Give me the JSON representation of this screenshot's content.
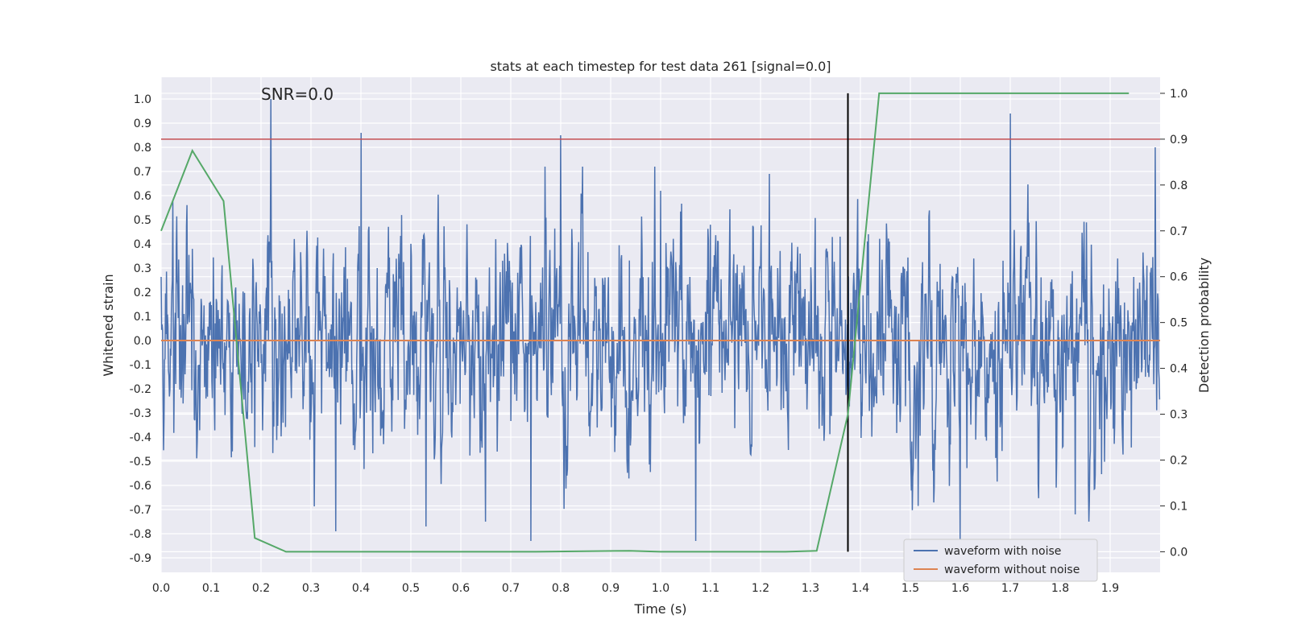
{
  "chart_data": {
    "type": "line",
    "title": "stats at each timestep for test data 261 [signal=0.0]",
    "xlabel": "Time (s)",
    "ylabel_left": "Whitened strain",
    "ylabel_right": "Detection probability",
    "xlim": [
      0.0,
      2.0
    ],
    "ylim_left": [
      -0.96,
      1.09
    ],
    "ylim_right": [
      -0.045,
      1.035
    ],
    "x_ticks": [
      "0.0",
      "0.1",
      "0.2",
      "0.3",
      "0.4",
      "0.5",
      "0.6",
      "0.7",
      "0.8",
      "0.9",
      "1.0",
      "1.1",
      "1.2",
      "1.3",
      "1.4",
      "1.5",
      "1.6",
      "1.7",
      "1.8",
      "1.9"
    ],
    "y_left_ticks": [
      "1.0",
      "0.9",
      "0.8",
      "0.7",
      "0.6",
      "0.5",
      "0.4",
      "0.3",
      "0.2",
      "0.1",
      "0.0",
      "-0.1",
      "-0.2",
      "-0.3",
      "-0.4",
      "-0.5",
      "-0.6",
      "-0.7",
      "-0.8",
      "-0.9"
    ],
    "y_right_ticks": [
      "1.0",
      "0.9",
      "0.8",
      "0.7",
      "0.6",
      "0.5",
      "0.4",
      "0.3",
      "0.2",
      "0.1",
      "0.0"
    ],
    "annotation": "SNR=0.0",
    "grid": true,
    "legend_position": "lower-right",
    "series": [
      {
        "name": "waveform with noise",
        "color": "#4c72b0",
        "axis": "left",
        "sample_rate": 1024,
        "noise_sigma": 0.22,
        "spikes": [
          [
            0.22,
            1.0
          ],
          [
            0.4,
            0.86
          ],
          [
            0.8,
            0.85
          ],
          [
            1.6,
            -0.83
          ],
          [
            1.7,
            0.94
          ],
          [
            1.07,
            -0.83
          ],
          [
            0.74,
            -0.83
          ],
          [
            1.0,
            0.62
          ],
          [
            0.35,
            -0.79
          ],
          [
            0.53,
            -0.77
          ],
          [
            1.83,
            -0.72
          ],
          [
            1.99,
            0.8
          ]
        ]
      },
      {
        "name": "waveform without noise",
        "color": "#dd8452",
        "axis": "left",
        "x": [
          0.0,
          2.0
        ],
        "y": [
          0.0,
          0.0
        ]
      },
      {
        "name": "Detection probability",
        "color": "#55a868",
        "axis": "right",
        "x": [
          0.0,
          0.0625,
          0.125,
          0.1875,
          0.25,
          0.3125,
          0.5,
          0.75,
          0.9375,
          1.0,
          1.25,
          1.3125,
          1.375,
          1.4375,
          1.5,
          1.9375
        ],
        "y": [
          0.7,
          0.875,
          0.765,
          0.03,
          0.0,
          0.0,
          0.0,
          0.0,
          0.002,
          0.0,
          0.0,
          0.002,
          0.3,
          1.0,
          1.0,
          1.0
        ]
      }
    ],
    "threshold": {
      "value": 0.9,
      "axis": "right",
      "color": "#c44e52"
    },
    "vertical_marker": {
      "x": 1.375,
      "color": "#000000"
    }
  }
}
